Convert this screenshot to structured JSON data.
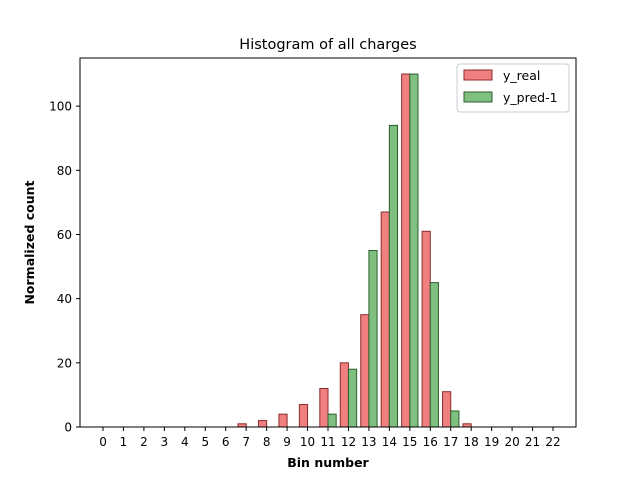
{
  "chart_data": {
    "type": "bar",
    "title": "Histogram of all charges",
    "xlabel": "Bin number",
    "ylabel": "Normalized count",
    "categories": [
      "0",
      "1",
      "2",
      "3",
      "4",
      "5",
      "6",
      "7",
      "8",
      "9",
      "10",
      "11",
      "12",
      "13",
      "14",
      "15",
      "16",
      "17",
      "18",
      "19",
      "20",
      "21",
      "22"
    ],
    "series": [
      {
        "name": "y_real",
        "color": "#f08080",
        "edge": "#8b2b2b",
        "values": [
          0,
          0,
          0,
          0,
          0,
          0,
          0,
          1,
          2,
          4,
          7,
          12,
          20,
          35,
          67,
          110,
          61,
          11,
          1,
          0,
          0,
          0,
          0
        ]
      },
      {
        "name": "y_pred-1",
        "color": "#7fbf7f",
        "edge": "#2e5e2e",
        "values": [
          0,
          0,
          0,
          0,
          0,
          0,
          0,
          0,
          0,
          0,
          0,
          4,
          18,
          55,
          94,
          110,
          45,
          5,
          0,
          0,
          0,
          0,
          0
        ]
      }
    ],
    "ylim": [
      0,
      115
    ],
    "yticks": [
      0,
      20,
      40,
      60,
      80,
      100
    ],
    "legend_position": "top-right",
    "grid": false
  }
}
